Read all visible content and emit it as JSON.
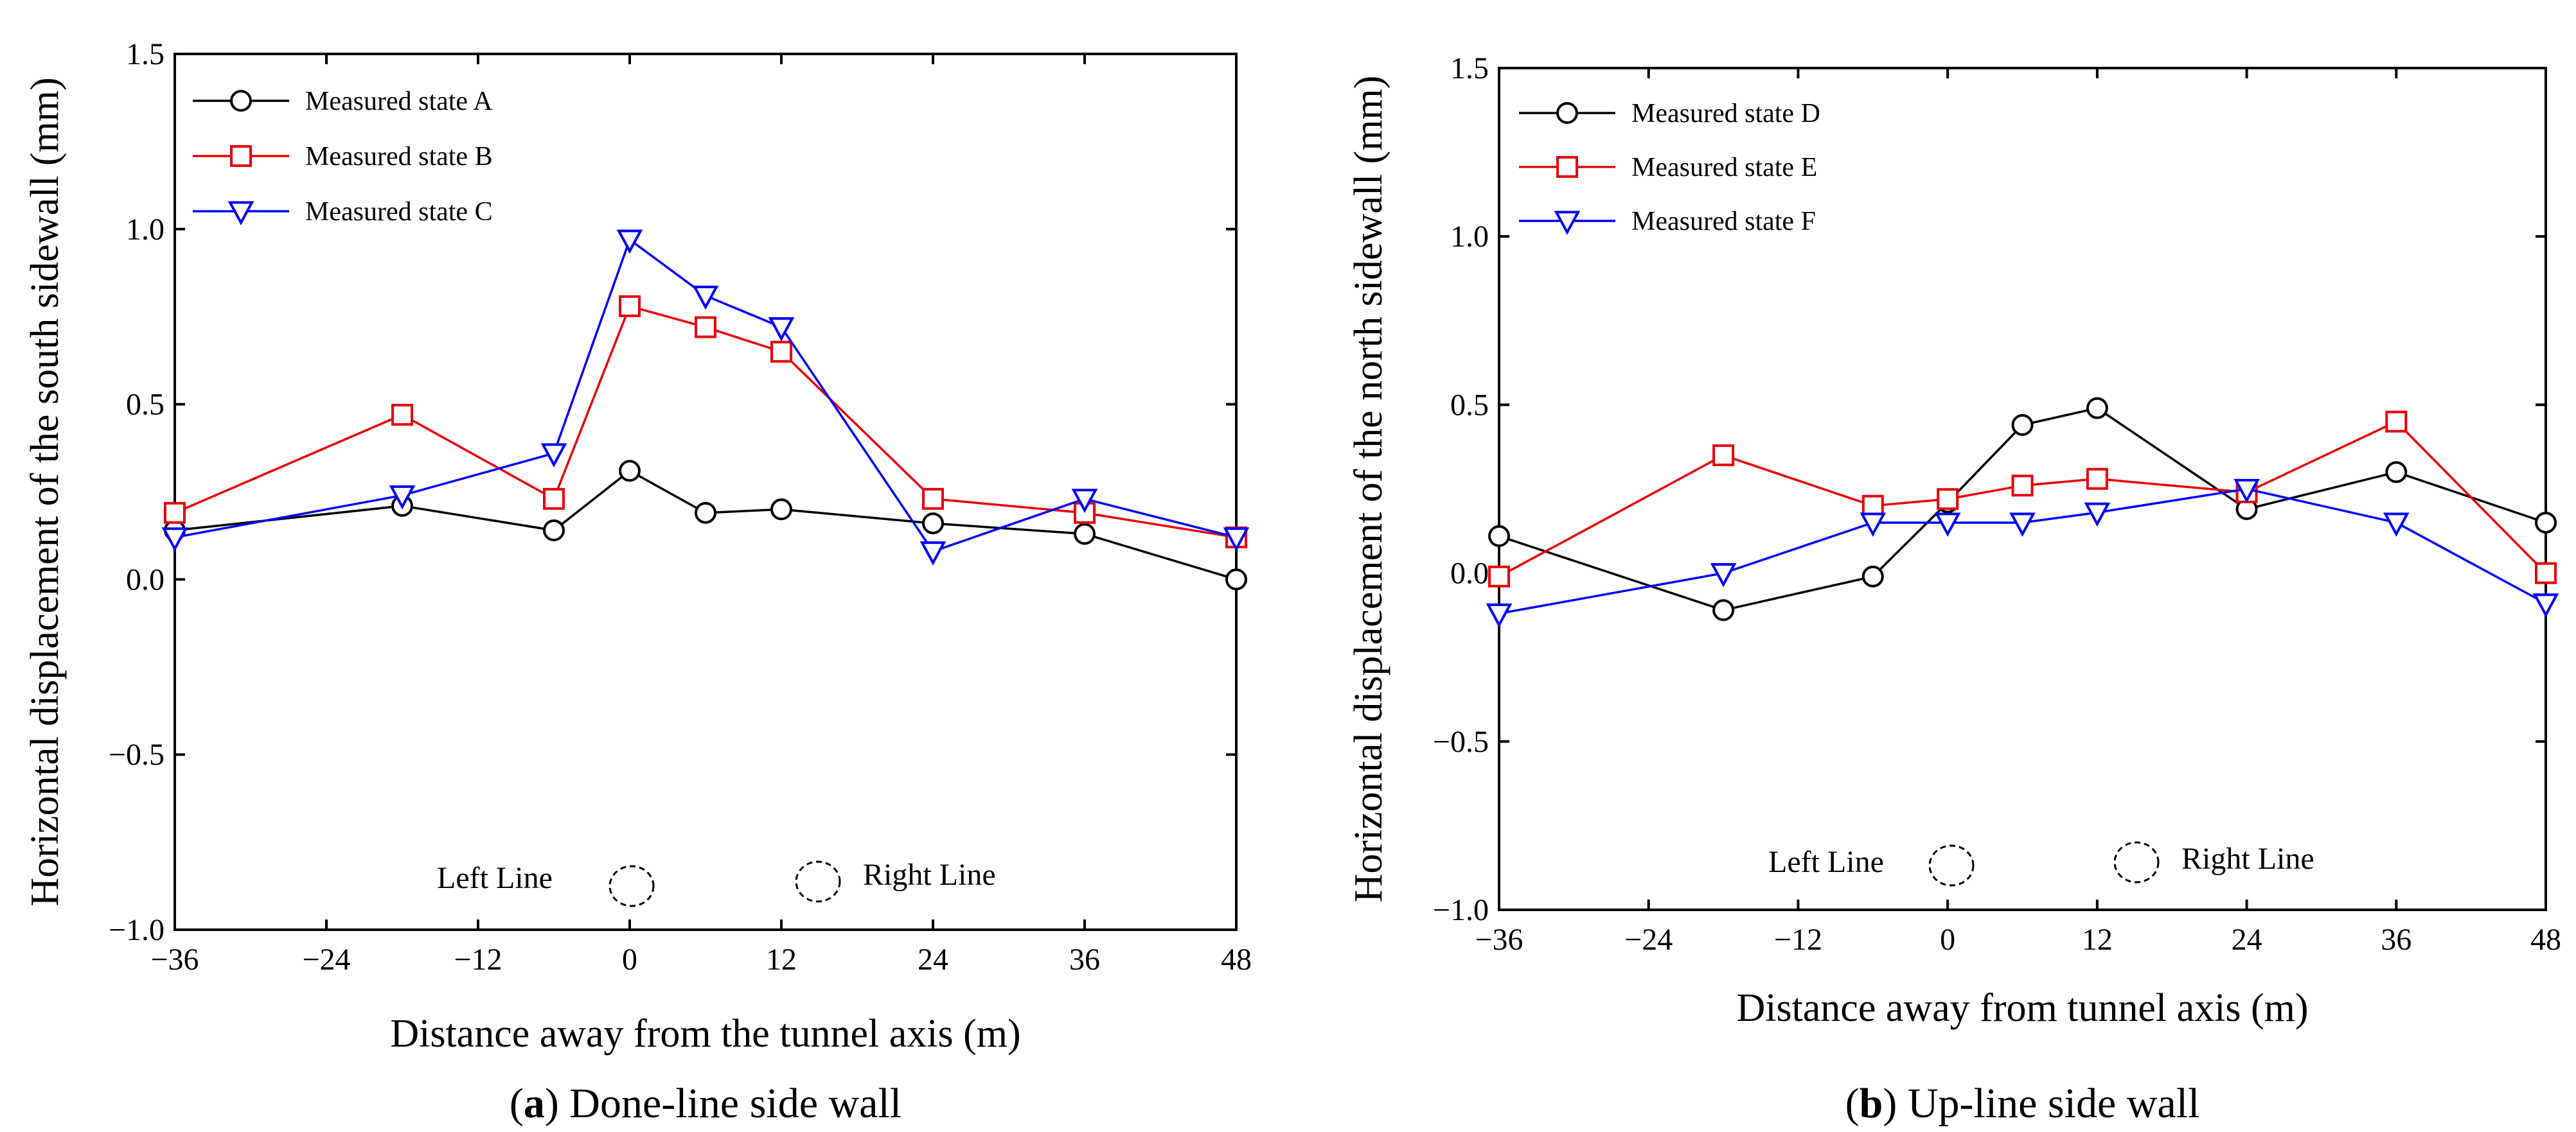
{
  "chart_data": [
    {
      "type": "line",
      "panel": "a",
      "caption_letter": "a",
      "caption_text": " Done-line side wall",
      "xlabel": "Distance away from the tunnel axis (m)",
      "ylabel": "Horizontal displacement of the south sidewall (mm)",
      "xlim": [
        -36,
        48
      ],
      "ylim": [
        -1.0,
        1.5
      ],
      "xticks": [
        -36,
        -24,
        -12,
        0,
        12,
        24,
        36,
        48
      ],
      "xtick_labels": [
        "−36",
        "−24",
        "−12",
        "0",
        "12",
        "24",
        "36",
        "48"
      ],
      "yticks": [
        -1.0,
        -0.5,
        0.0,
        0.5,
        1.0,
        1.5
      ],
      "ytick_labels": [
        "−1.0",
        "−0.5",
        "0.0",
        "0.5",
        "1.0",
        "1.5"
      ],
      "annotations": {
        "left_line": "Left Line",
        "right_line": "Right Line"
      },
      "series": [
        {
          "name": "Measured state A",
          "color": "#000000",
          "marker": "circle",
          "x": [
            -36,
            -18,
            -6,
            0,
            6,
            12,
            24,
            36,
            48
          ],
          "y": [
            0.14,
            0.21,
            0.14,
            0.31,
            0.19,
            0.2,
            0.16,
            0.13,
            0.0
          ]
        },
        {
          "name": "Measured state B",
          "color": "#e8000b",
          "marker": "square",
          "x": [
            -36,
            -18,
            -6,
            0,
            6,
            12,
            24,
            36,
            48
          ],
          "y": [
            0.19,
            0.47,
            0.23,
            0.78,
            0.72,
            0.65,
            0.23,
            0.19,
            0.12
          ]
        },
        {
          "name": "Measured state C",
          "color": "#0000ff",
          "marker": "triangle-down",
          "x": [
            -36,
            -18,
            -6,
            0,
            6,
            12,
            24,
            36,
            48
          ],
          "y": [
            0.12,
            0.24,
            0.36,
            0.97,
            0.81,
            0.72,
            0.08,
            0.23,
            0.12
          ]
        }
      ]
    },
    {
      "type": "line",
      "panel": "b",
      "caption_letter": "b",
      "caption_text": " Up-line side wall",
      "xlabel": "Distance away from tunnel axis (m)",
      "ylabel": "Horizontal displacement of the north sidewall (mm)",
      "xlim": [
        -36,
        48
      ],
      "ylim": [
        -1.0,
        1.5
      ],
      "xticks": [
        -36,
        -24,
        -12,
        0,
        12,
        24,
        36,
        48
      ],
      "xtick_labels": [
        "−36",
        "−24",
        "−12",
        "0",
        "12",
        "24",
        "36",
        "48"
      ],
      "yticks": [
        -1.0,
        -0.5,
        0.0,
        0.5,
        1.0,
        1.5
      ],
      "ytick_labels": [
        "−1.0",
        "−0.5",
        "0.0",
        "0.5",
        "1.0",
        "1.5"
      ],
      "annotations": {
        "left_line": "Left Line",
        "right_line": "Right Line"
      },
      "series": [
        {
          "name": "Measured state D",
          "color": "#000000",
          "marker": "circle",
          "x": [
            -36,
            -18,
            -6,
            0,
            6,
            12,
            24,
            36,
            48
          ],
          "y": [
            0.11,
            -0.11,
            -0.01,
            0.21,
            0.44,
            0.49,
            0.19,
            0.3,
            0.15
          ]
        },
        {
          "name": "Measured state E",
          "color": "#e8000b",
          "marker": "square",
          "x": [
            -36,
            -18,
            -6,
            0,
            6,
            12,
            24,
            36,
            48
          ],
          "y": [
            -0.01,
            0.35,
            0.2,
            0.22,
            0.26,
            0.28,
            0.24,
            0.45,
            0.0
          ]
        },
        {
          "name": "Measured state F",
          "color": "#0000ff",
          "marker": "triangle-down",
          "x": [
            -36,
            -18,
            -6,
            0,
            6,
            12,
            24,
            36,
            48
          ],
          "y": [
            -0.12,
            0.0,
            0.15,
            0.15,
            0.15,
            0.18,
            0.25,
            0.15,
            -0.09
          ]
        }
      ]
    }
  ]
}
